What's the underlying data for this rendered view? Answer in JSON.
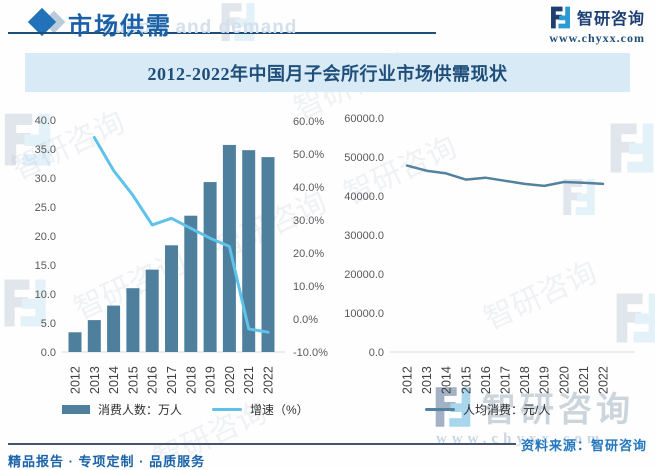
{
  "header": {
    "section_title": "市场供需",
    "brand_name": "智研咨询",
    "brand_url": "www.chyxx.com"
  },
  "watermarks": {
    "header_ghost": "supply and demand",
    "diagonal_text": "智研咨询",
    "big_text": "智研咨询",
    "big_url": "www.chyxx.com"
  },
  "chart_data": [
    {
      "type": "bar+line",
      "title": "2012-2022年中国月子会所行业市场供需现状",
      "categories": [
        "2012",
        "2013",
        "2014",
        "2015",
        "2016",
        "2017",
        "2018",
        "2019",
        "2020",
        "2021",
        "2022"
      ],
      "series": [
        {
          "name": "消费人数：万人",
          "type": "bar",
          "axis": "left",
          "color": "#4e7f9c",
          "values": [
            3.4,
            5.5,
            8.0,
            11.0,
            14.2,
            18.4,
            23.5,
            29.3,
            35.7,
            34.8,
            33.6
          ]
        },
        {
          "name": "增速（%）",
          "type": "line",
          "axis": "right",
          "color": "#5ec2ea",
          "values": [
            null,
            55.0,
            45.0,
            37.5,
            28.5,
            30.5,
            27.5,
            24.5,
            22.0,
            -3.0,
            -4.0
          ]
        }
      ],
      "left_axis": {
        "min": 0,
        "max": 40,
        "step": 5,
        "labels": [
          "0.0",
          "5.0",
          "10.0",
          "15.0",
          "20.0",
          "25.0",
          "30.0",
          "35.0",
          "40.0"
        ]
      },
      "right_axis": {
        "min": -10,
        "max": 60,
        "step": 10,
        "labels": [
          "-10.0%",
          "0.0%",
          "10.0%",
          "20.0%",
          "30.0%",
          "40.0%",
          "50.0%",
          "60.0%"
        ]
      },
      "grid": "off",
      "legend_position": "bottom"
    },
    {
      "type": "line",
      "categories": [
        "2012",
        "2013",
        "2014",
        "2015",
        "2016",
        "2017",
        "2018",
        "2019",
        "2020",
        "2021",
        "2022"
      ],
      "series": [
        {
          "name": "人均消费：元/人",
          "type": "line",
          "axis": "left",
          "color": "#53829e",
          "values": [
            47800,
            46500,
            45800,
            44200,
            44700,
            43900,
            43100,
            42600,
            43600,
            43400,
            43100
          ]
        }
      ],
      "left_axis": {
        "min": 0,
        "max": 60000,
        "step": 10000,
        "labels": [
          "0.0",
          "10000.0",
          "20000.0",
          "30000.0",
          "40000.0",
          "50000.0",
          "60000.0"
        ]
      },
      "grid": "off",
      "legend_position": "bottom"
    }
  ],
  "footer": {
    "services": "精品报告 · 专项定制 · 品质服务",
    "source": "资料来源：智研咨询"
  },
  "colors": {
    "accent_blue": "#1a60a7",
    "title_navy": "#1f4e79",
    "band_bg": "#d8eaf6",
    "bar_teal": "#4e7f9c",
    "growth_line": "#5ec2ea",
    "percap_line": "#53829e",
    "source_blue": "#2377bd"
  }
}
